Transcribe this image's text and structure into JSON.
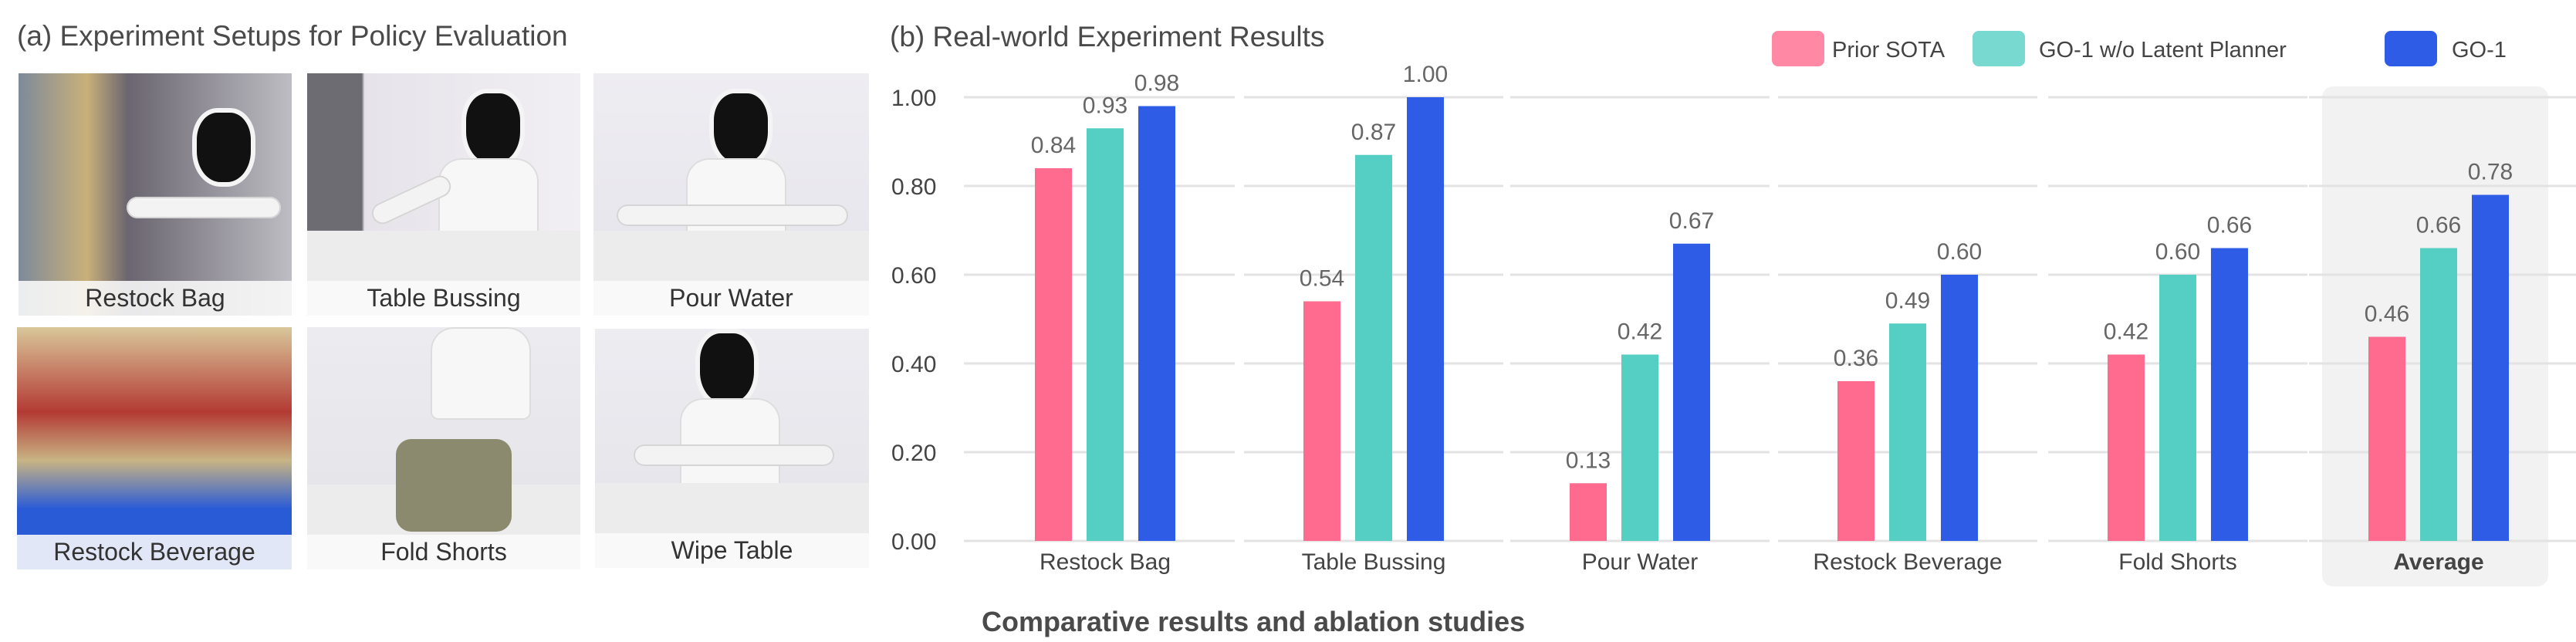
{
  "left_panel": {
    "title": "(a) Experiment Setups for Policy Evaluation",
    "tiles": [
      {
        "label": "Restock Bag"
      },
      {
        "label": "Table Bussing"
      },
      {
        "label": "Pour Water"
      },
      {
        "label": "Restock Beverage"
      },
      {
        "label": "Fold Shorts"
      },
      {
        "label": "Wipe Table"
      }
    ]
  },
  "chart_data": {
    "type": "bar",
    "title": "(b) Real-world Experiment Results",
    "caption": "Comparative results and ablation studies",
    "categories": [
      "Restock Bag",
      "Table Bussing",
      "Pour Water",
      "Restock Beverage",
      "Fold Shorts",
      "Average"
    ],
    "highlighted_category": "Average",
    "series": [
      {
        "name": "Prior SOTA",
        "color": "#ff6b8e",
        "values": [
          0.84,
          0.54,
          0.13,
          0.36,
          0.42,
          0.46
        ],
        "labels": [
          "0.84",
          "0.54",
          "0.13",
          "0.36",
          "0.42",
          "0.46"
        ]
      },
      {
        "name": "GO-1 w/o Latent Planner",
        "color": "#55cfc3",
        "values": [
          0.93,
          0.87,
          0.42,
          0.49,
          0.6,
          0.66
        ],
        "labels": [
          "0.93",
          "0.87",
          "0.42",
          "0.49",
          "0.60",
          "0.66"
        ]
      },
      {
        "name": "GO-1",
        "color": "#2f5ce6",
        "values": [
          0.98,
          1.0,
          0.67,
          0.6,
          0.66,
          0.78
        ],
        "labels": [
          "0.98",
          "1.00",
          "0.67",
          "0.60",
          "0.66",
          "0.78"
        ]
      }
    ],
    "yticks": [
      "0.00",
      "0.20",
      "0.40",
      "0.60",
      "0.80",
      "1.00"
    ],
    "ylim": [
      0,
      1.0
    ],
    "grid": true,
    "legend_position": "top-right"
  }
}
